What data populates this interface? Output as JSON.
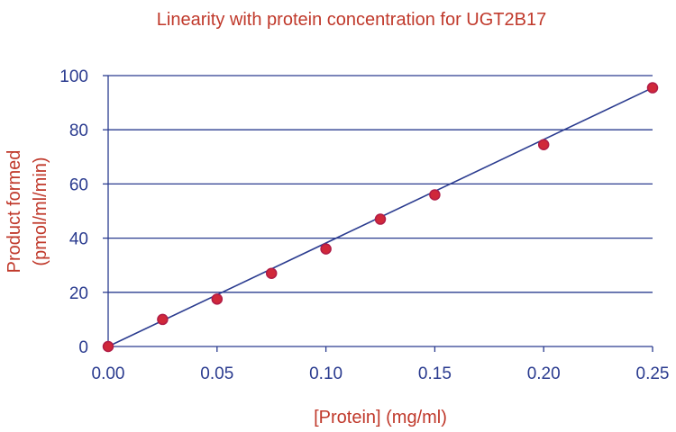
{
  "chart_data": {
    "type": "scatter",
    "title": "Linearity with protein concentration for UGT2B17",
    "xlabel": "[Protein] (mg/ml)",
    "ylabel_line1": "Product formed",
    "ylabel_line2": "(pmol/ml/min)",
    "xlim": [
      0,
      0.25
    ],
    "ylim": [
      0,
      100
    ],
    "x_ticks": [
      "0.00",
      "0.05",
      "0.10",
      "0.15",
      "0.20",
      "0.25"
    ],
    "y_ticks": [
      "0",
      "20",
      "40",
      "60",
      "80",
      "100"
    ],
    "grid": "horizontal",
    "series": [
      {
        "x": [
          0.0,
          0.025,
          0.05,
          0.075,
          0.1,
          0.125,
          0.15,
          0.2,
          0.25
        ],
        "y": [
          0,
          10,
          17.5,
          27,
          36,
          47,
          56,
          74.5,
          95.5
        ]
      }
    ],
    "trendline": {
      "x": [
        0.0,
        0.25
      ],
      "y": [
        0,
        95.5
      ]
    },
    "colors": {
      "points": "#d0283a",
      "lines": "#2a3b8f",
      "labels": "#c0392b"
    }
  }
}
